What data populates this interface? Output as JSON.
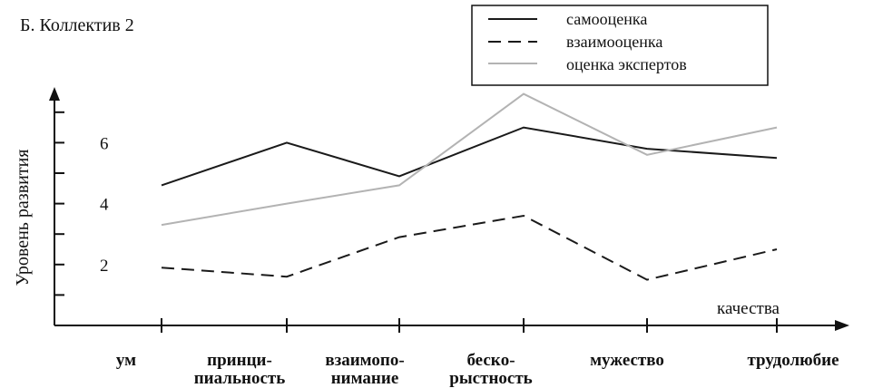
{
  "chart_data": {
    "type": "line",
    "title": "Б. Коллектив 2",
    "ylabel": "Уровень развития",
    "xlabel": "качества",
    "categories": [
      [
        "ум"
      ],
      [
        "принци-",
        "пиальность"
      ],
      [
        "взаимопо-",
        "нимание"
      ],
      [
        "бескo-",
        "рыстность"
      ],
      [
        "мужество"
      ],
      [
        "трудолюбие"
      ]
    ],
    "yticks": [
      2,
      4,
      6
    ],
    "ylim": [
      0,
      7.5
    ],
    "grid": false,
    "legend_position": "top-right",
    "series": [
      {
        "name": "самооценка",
        "style": "solid",
        "color": "#1a1a1a",
        "values": [
          4.6,
          6.0,
          4.9,
          6.5,
          5.8,
          5.5
        ]
      },
      {
        "name": "взаимооценка",
        "style": "dashed",
        "color": "#1a1a1a",
        "values": [
          1.9,
          1.6,
          2.9,
          3.6,
          1.5,
          2.5
        ]
      },
      {
        "name": "оценка экспертов",
        "style": "solid",
        "color": "#b3b3b3",
        "values": [
          3.3,
          4.0,
          4.6,
          7.6,
          5.6,
          6.5
        ]
      }
    ]
  }
}
